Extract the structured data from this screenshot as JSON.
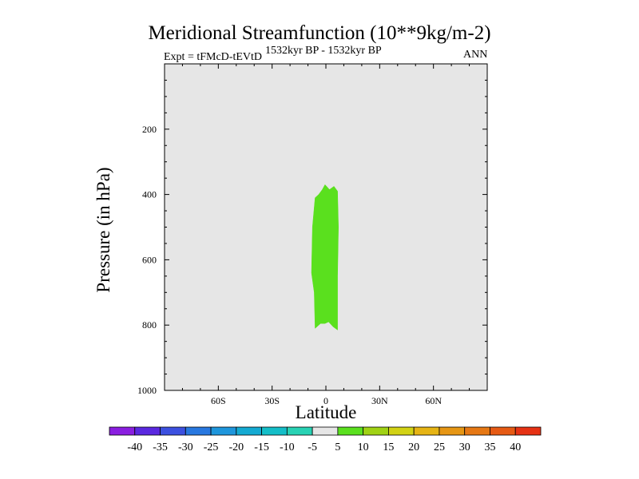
{
  "chart_data": {
    "type": "contour",
    "title": "Meridional Streamfunction (10**9kg/m-2)",
    "left_string": "Expt = tFMcD-tEVtD",
    "center_string": "1532kyr BP - 1532kyr BP",
    "right_string": "ANN",
    "xlabel": "Latitude",
    "ylabel": "Pressure (in hPa)",
    "xlim": [
      -90,
      90
    ],
    "ylim": [
      1000,
      0
    ],
    "x_ticks": [
      {
        "value": -60,
        "label": "60S"
      },
      {
        "value": -30,
        "label": "30S"
      },
      {
        "value": 0,
        "label": "0"
      },
      {
        "value": 30,
        "label": "30N"
      },
      {
        "value": 60,
        "label": "60N"
      }
    ],
    "y_ticks": [
      {
        "value": 200,
        "label": "200"
      },
      {
        "value": 400,
        "label": "400"
      },
      {
        "value": 600,
        "label": "600"
      },
      {
        "value": 800,
        "label": "800"
      },
      {
        "value": 1000,
        "label": "1000"
      }
    ],
    "background_color": "#e6e6e6",
    "filled_regions": [
      {
        "level_range": [
          5,
          10
        ],
        "color": "#5ae01e",
        "outline": [
          [
            -6,
            410
          ],
          [
            -4,
            400
          ],
          [
            -2,
            385
          ],
          [
            -0.5,
            370
          ],
          [
            2,
            385
          ],
          [
            4.5,
            375
          ],
          [
            6.5,
            390
          ],
          [
            7,
            500
          ],
          [
            6.5,
            650
          ],
          [
            6.5,
            800
          ],
          [
            6.5,
            815
          ],
          [
            4,
            805
          ],
          [
            1.5,
            790
          ],
          [
            -0.5,
            795
          ],
          [
            -3,
            795
          ],
          [
            -6,
            810
          ],
          [
            -6.5,
            700
          ],
          [
            -8,
            640
          ],
          [
            -7.5,
            500
          ]
        ]
      }
    ],
    "colorbar": {
      "labels": [
        "-40",
        "-35",
        "-30",
        "-25",
        "-20",
        "-15",
        "-10",
        "-5",
        "5",
        "10",
        "15",
        "20",
        "25",
        "30",
        "35",
        "40"
      ],
      "colors": [
        "#8a1ee0",
        "#5a28e0",
        "#3c50e0",
        "#2878e0",
        "#1e96dc",
        "#14aad2",
        "#14bec8",
        "#28d2b4",
        "#e6e6e6",
        "#5ae01e",
        "#a0d214",
        "#d2d214",
        "#e6b414",
        "#e69614",
        "#e67814",
        "#e65a14",
        "#e63214"
      ]
    }
  }
}
